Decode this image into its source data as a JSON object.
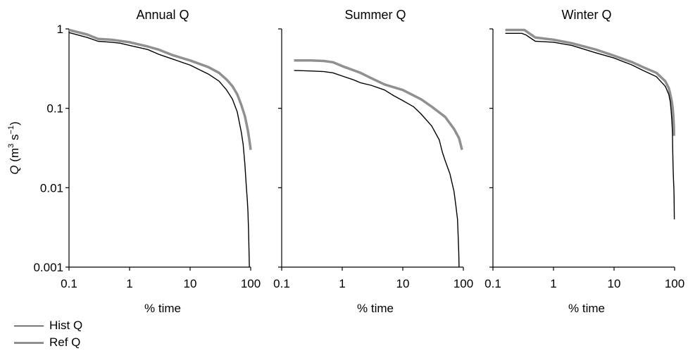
{
  "chart_data": {
    "type": "line",
    "y_label_parts": {
      "q": "Q",
      "pre": "(m",
      "sup1": "3",
      "mid": "s",
      "sup2": "−1",
      "post": ")"
    },
    "y_scale": "log",
    "x_scale": "log",
    "ylim": [
      0.001,
      1
    ],
    "xlim": [
      0.1,
      100
    ],
    "y_tick_labels": [
      "1",
      "0.1",
      "0.01",
      "0.001"
    ],
    "y_tick_values": [
      1,
      0.1,
      0.01,
      0.001
    ],
    "x_tick_values": [
      0.1,
      1,
      10,
      100
    ],
    "legend_placement": "bottom-left",
    "legend": [
      {
        "label": "Hist Q",
        "color": "#000000"
      },
      {
        "label": "Ref Q",
        "color": "#909090"
      }
    ],
    "panels": [
      {
        "title": "Annual Q",
        "xlabel": "% time",
        "x_tick_labels": [
          "0.1",
          "1",
          "10",
          "100"
        ],
        "series": [
          {
            "name": "Hist Q",
            "color": "#000000",
            "x": [
              0.1,
              0.2,
              0.3,
              0.5,
              0.7,
              1,
              2,
              3,
              5,
              10,
              20,
              30,
              40,
              50,
              60,
              70,
              75,
              80,
              85,
              88,
              90,
              92,
              94,
              95
            ],
            "y": [
              0.9,
              0.78,
              0.7,
              0.68,
              0.66,
              0.62,
              0.55,
              0.48,
              0.42,
              0.35,
              0.27,
              0.22,
              0.17,
              0.13,
              0.09,
              0.05,
              0.035,
              0.02,
              0.01,
              0.007,
              0.005,
              0.003,
              0.0015,
              0.001
            ]
          },
          {
            "name": "Ref Q",
            "color": "#909090",
            "x": [
              0.1,
              0.2,
              0.3,
              0.5,
              1,
              2,
              3,
              5,
              10,
              20,
              30,
              40,
              50,
              60,
              70,
              80,
              85,
              90,
              95,
              100
            ],
            "y": [
              0.97,
              0.85,
              0.75,
              0.73,
              0.68,
              0.6,
              0.55,
              0.47,
              0.4,
              0.33,
              0.28,
              0.23,
              0.19,
              0.15,
              0.11,
              0.08,
              0.065,
              0.052,
              0.04,
              0.03
            ]
          }
        ]
      },
      {
        "title": "Summer Q",
        "xlabel": "% time",
        "x_tick_labels": [
          "0.1",
          "1",
          "10",
          "100"
        ],
        "series": [
          {
            "name": "Hist Q",
            "color": "#000000",
            "x": [
              0.16,
              0.3,
              0.5,
              0.7,
              1,
              1.5,
              2,
              3,
              5,
              7,
              10,
              15,
              20,
              30,
              40,
              45,
              50,
              60,
              70,
              75,
              80,
              82,
              84,
              85
            ],
            "y": [
              0.3,
              0.295,
              0.29,
              0.28,
              0.255,
              0.23,
              0.21,
              0.195,
              0.17,
              0.145,
              0.125,
              0.105,
              0.085,
              0.06,
              0.04,
              0.028,
              0.022,
              0.015,
              0.009,
              0.006,
              0.004,
              0.0025,
              0.0015,
              0.001
            ]
          },
          {
            "name": "Ref Q",
            "color": "#909090",
            "x": [
              0.16,
              0.3,
              0.5,
              0.7,
              1,
              2,
              3,
              5,
              10,
              20,
              30,
              50,
              70,
              85,
              95
            ],
            "y": [
              0.4,
              0.4,
              0.395,
              0.38,
              0.34,
              0.28,
              0.24,
              0.2,
              0.17,
              0.13,
              0.105,
              0.078,
              0.055,
              0.042,
              0.03
            ]
          }
        ]
      },
      {
        "title": "Winter Q",
        "xlabel": "% time",
        "x_tick_labels": [
          "0.1",
          "1",
          "10",
          "100"
        ],
        "series": [
          {
            "name": "Hist Q",
            "color": "#000000",
            "x": [
              0.16,
              0.3,
              0.35,
              0.5,
              1,
              2,
              5,
              10,
              20,
              30,
              50,
              70,
              80,
              85,
              88,
              90,
              92,
              93,
              94,
              95,
              96,
              97,
              98,
              99
            ],
            "y": [
              0.88,
              0.88,
              0.84,
              0.7,
              0.68,
              0.62,
              0.5,
              0.43,
              0.35,
              0.3,
              0.25,
              0.19,
              0.15,
              0.12,
              0.09,
              0.07,
              0.05,
              0.03,
              0.02,
              0.015,
              0.012,
              0.01,
              0.008,
              0.004
            ]
          },
          {
            "name": "Ref Q",
            "color": "#909090",
            "x": [
              0.16,
              0.33,
              0.5,
              1,
              2,
              5,
              10,
              20,
              30,
              50,
              70,
              80,
              85,
              90,
              93,
              95,
              97,
              98
            ],
            "y": [
              0.97,
              0.97,
              0.78,
              0.73,
              0.66,
              0.55,
              0.46,
              0.38,
              0.33,
              0.28,
              0.22,
              0.18,
              0.15,
              0.12,
              0.1,
              0.08,
              0.06,
              0.045
            ]
          }
        ]
      }
    ]
  }
}
